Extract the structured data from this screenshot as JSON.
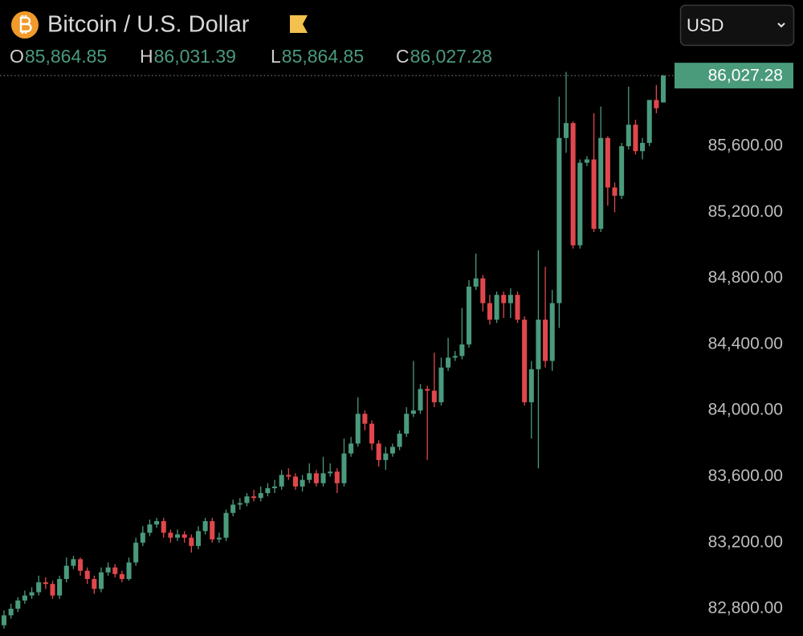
{
  "chart_data": {
    "type": "candlestick",
    "title": "Bitcoin / U.S. Dollar",
    "ohlc_legend": [
      {
        "key": "O",
        "text": "85,864.85"
      },
      {
        "key": "H",
        "text": "86,031.39"
      },
      {
        "key": "L",
        "text": "85,864.85"
      },
      {
        "key": "C",
        "text": "86,027.28"
      }
    ],
    "currency": "USD",
    "last_price": {
      "value": 86027.28,
      "label": "86,027.28"
    },
    "up_color": "#4a9a7c",
    "down_color": "#e0474c",
    "ylim": [
      82635,
      86485
    ],
    "yticks": [
      {
        "value": 82800,
        "label": "82,800.00"
      },
      {
        "value": 83200,
        "label": "83,200.00"
      },
      {
        "value": 83600,
        "label": "83,600.00"
      },
      {
        "value": 84000,
        "label": "84,000.00"
      },
      {
        "value": 84400,
        "label": "84,400.00"
      },
      {
        "value": 84800,
        "label": "84,800.00"
      },
      {
        "value": 85200,
        "label": "85,200.00"
      },
      {
        "value": 85600,
        "label": "85,600.00"
      }
    ],
    "open": [
      82700,
      82760,
      82800,
      82850,
      82880,
      82900,
      82960,
      82950,
      82880,
      82980,
      83060,
      83100,
      83030,
      82980,
      82920,
      83020,
      83050,
      83010,
      82980,
      83080,
      83200,
      83260,
      83310,
      83330,
      83260,
      83230,
      83250,
      83230,
      83180,
      83270,
      83330,
      83220,
      83230,
      83380,
      83430,
      83440,
      83480,
      83470,
      83500,
      83530,
      83540,
      83610,
      83600,
      83540,
      83580,
      83620,
      83560,
      83620,
      83630,
      83560,
      83740,
      83800,
      83980,
      83920,
      83800,
      83700,
      83740,
      83780,
      83860,
      83980,
      84000,
      84130,
      84120,
      84050,
      84260,
      84320,
      84330,
      84400,
      84750,
      84800,
      84650,
      84550,
      84700,
      84650,
      84700,
      84550,
      84050,
      84250,
      84550,
      84300,
      84650,
      85650,
      85740,
      85000,
      85500,
      85520,
      85100,
      85650,
      85350,
      85300,
      85600,
      85730,
      85570,
      85620,
      85880,
      85864.85
    ],
    "high": [
      82790,
      82830,
      82870,
      82910,
      82930,
      83000,
      82990,
      82970,
      83000,
      83110,
      83120,
      83110,
      83050,
      83000,
      83050,
      83080,
      83070,
      83030,
      83110,
      83230,
      83300,
      83340,
      83350,
      83350,
      83280,
      83280,
      83270,
      83250,
      83300,
      83350,
      83350,
      83260,
      83400,
      83460,
      83470,
      83500,
      83520,
      83540,
      83560,
      83580,
      83640,
      83650,
      83620,
      83610,
      83680,
      83640,
      83720,
      83680,
      83650,
      83830,
      83840,
      84080,
      84000,
      83940,
      83820,
      83780,
      83800,
      83880,
      84020,
      84300,
      84160,
      84150,
      84350,
      84320,
      84440,
      84360,
      84620,
      84790,
      84950,
      84820,
      84700,
      84720,
      84720,
      84740,
      84720,
      84570,
      84300,
      84970,
      84870,
      84730,
      85900,
      86050,
      85750,
      85520,
      85540,
      85800,
      85840,
      85660,
      85380,
      85620,
      85960,
      85760,
      85650,
      85880,
      85970,
      86031.39
    ],
    "low": [
      82680,
      82740,
      82780,
      82830,
      82860,
      82880,
      82920,
      82860,
      82860,
      82960,
      83040,
      83000,
      82950,
      82890,
      82900,
      83000,
      82990,
      82960,
      82970,
      83060,
      83180,
      83240,
      83290,
      83230,
      83200,
      83210,
      83200,
      83140,
      83160,
      83250,
      83200,
      83200,
      83210,
      83360,
      83400,
      83420,
      83450,
      83450,
      83480,
      83500,
      83520,
      83580,
      83520,
      83510,
      83560,
      83540,
      83540,
      83600,
      83500,
      83540,
      83720,
      83780,
      83880,
      83760,
      83660,
      83640,
      83720,
      83760,
      83840,
      83960,
      83980,
      83700,
      84020,
      84030,
      84240,
      84300,
      84310,
      84380,
      84730,
      84600,
      84520,
      84530,
      84560,
      84560,
      84530,
      84030,
      83830,
      83650,
      84260,
      84240,
      84500,
      85560,
      84980,
      84980,
      85480,
      85080,
      85080,
      85240,
      85200,
      85280,
      85580,
      85550,
      85520,
      85600,
      85800,
      85864.85
    ],
    "close": [
      82760,
      82800,
      82850,
      82880,
      82900,
      82960,
      82950,
      82880,
      82980,
      83060,
      83100,
      83030,
      82980,
      82920,
      83020,
      83050,
      83010,
      82980,
      83080,
      83200,
      83260,
      83310,
      83330,
      83260,
      83230,
      83250,
      83230,
      83180,
      83270,
      83330,
      83220,
      83230,
      83380,
      83430,
      83440,
      83480,
      83470,
      83500,
      83530,
      83540,
      83610,
      83600,
      83540,
      83580,
      83620,
      83560,
      83620,
      83630,
      83560,
      83740,
      83800,
      83980,
      83920,
      83800,
      83700,
      83740,
      83780,
      83860,
      83980,
      84000,
      84130,
      84120,
      84050,
      84260,
      84320,
      84330,
      84400,
      84750,
      84800,
      84650,
      84550,
      84700,
      84650,
      84700,
      84550,
      84050,
      84250,
      84550,
      84300,
      84650,
      85650,
      85740,
      85000,
      85500,
      85520,
      85100,
      85650,
      85350,
      85300,
      85600,
      85730,
      85570,
      85620,
      85880,
      85830,
      86027.28
    ]
  }
}
